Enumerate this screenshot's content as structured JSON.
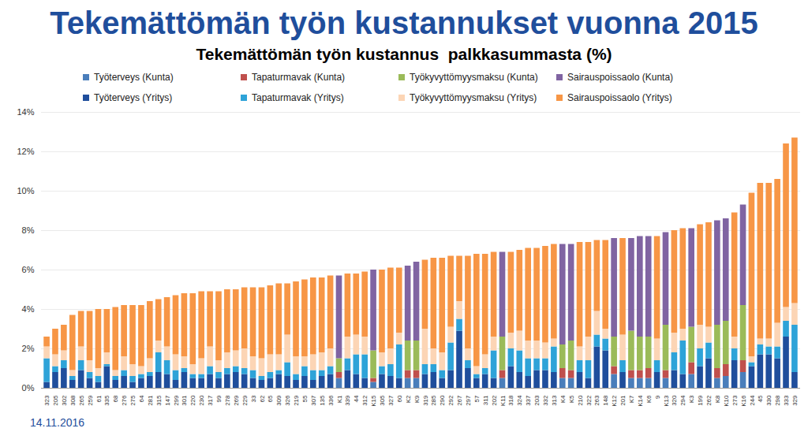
{
  "chart_data": {
    "type": "bar",
    "title": "Tekemättömän työn kustannukset vuonna 2015",
    "subtitle": "Tekemättömän työn kustannus  palkkasummasta (%)",
    "annotations": [
      "14.11.2016"
    ],
    "stacked": true,
    "grid": true,
    "legend": "top",
    "categories": [
      "323",
      "205",
      "302",
      "308",
      "265",
      "259",
      "61",
      "335",
      "68",
      "276",
      "275",
      "64",
      "281",
      "315",
      "147",
      "299",
      "301",
      "220",
      "230",
      "317",
      "99",
      "278",
      "269",
      "229",
      "33",
      "62",
      "65",
      "309",
      "326",
      "219",
      "55",
      "307",
      "135",
      "336",
      "K1",
      "339",
      "44",
      "312",
      "K15",
      "305",
      "327",
      "60",
      "K2",
      "K9",
      "319",
      "285",
      "290",
      "292",
      "267",
      "297",
      "57",
      "311",
      "202",
      "K11",
      "318",
      "324",
      "337",
      "203",
      "332",
      "313",
      "K4",
      "K5",
      "210",
      "322",
      "263",
      "148",
      "K12",
      "201",
      "K7",
      "K14",
      "K6",
      "9",
      "K13",
      "320",
      "294",
      "K3",
      "199",
      "262",
      "K8",
      "K10",
      "273",
      "K16",
      "244",
      "45",
      "330",
      "298",
      "333",
      "329"
    ],
    "ylim": [
      0,
      14
    ],
    "yticks": [
      {
        "value": 0,
        "label": "0%"
      },
      {
        "value": 2,
        "label": "2%"
      },
      {
        "value": 4,
        "label": "4%"
      },
      {
        "value": 6,
        "label": "6%"
      },
      {
        "value": 8,
        "label": "8%"
      },
      {
        "value": 10,
        "label": "10%"
      },
      {
        "value": 12,
        "label": "12%"
      },
      {
        "value": 14,
        "label": "14%"
      }
    ],
    "series": [
      {
        "name": "Työterveys (Kunta)",
        "color": "#4a7ebb",
        "values": [
          0,
          0,
          0,
          0,
          0,
          0,
          0,
          0,
          0,
          0,
          0,
          0,
          0,
          0,
          0,
          0,
          0,
          0,
          0,
          0,
          0,
          0,
          0,
          0,
          0,
          0,
          0,
          0,
          0,
          0,
          0,
          0,
          0,
          0,
          0.5,
          0,
          0,
          0,
          0.3,
          0,
          0,
          0,
          0.5,
          0.5,
          0,
          0,
          0,
          0,
          0,
          0,
          0,
          0,
          0,
          0.5,
          0,
          0,
          0,
          0,
          0,
          0,
          0.5,
          0.5,
          0,
          0,
          0,
          0,
          0.7,
          0,
          0.5,
          0.5,
          0.5,
          0,
          0.5,
          0,
          0,
          0.7,
          0,
          0,
          0.5,
          0.6,
          0,
          0.8,
          0,
          0,
          0,
          0,
          0,
          0
        ]
      },
      {
        "name": "Tapaturmavak (Kunta)",
        "color": "#c0504d",
        "values": [
          0,
          0,
          0,
          0,
          0,
          0,
          0,
          0,
          0,
          0,
          0,
          0,
          0,
          0,
          0,
          0,
          0,
          0,
          0,
          0,
          0,
          0,
          0,
          0,
          0,
          0,
          0,
          0,
          0,
          0,
          0,
          0,
          0,
          0,
          0.3,
          0,
          0,
          0,
          0.2,
          0,
          0,
          0,
          0.4,
          0.4,
          0,
          0,
          0,
          0,
          0,
          0,
          0,
          0,
          0,
          0.4,
          0,
          0,
          0,
          0,
          0,
          0,
          0.5,
          0.4,
          0,
          0,
          0,
          0,
          0.4,
          0,
          0.4,
          0.4,
          0.5,
          0,
          0.4,
          0,
          0,
          0.6,
          0,
          0,
          0.5,
          0.6,
          0,
          0.6,
          0,
          0,
          0,
          0,
          0,
          0
        ]
      },
      {
        "name": "Työkyvyttömyysmaksu (Kunta)",
        "color": "#9bbb59",
        "values": [
          0,
          0,
          0,
          0,
          0,
          0,
          0,
          0,
          0,
          0,
          0,
          0,
          0,
          0,
          0,
          0,
          0,
          0,
          0,
          0,
          0,
          0,
          0,
          0,
          0,
          0,
          0,
          0,
          0,
          0,
          0,
          0,
          0,
          0,
          0.7,
          0,
          0,
          0,
          1.4,
          0,
          0,
          0,
          1.5,
          1.5,
          0,
          0,
          0,
          0,
          0,
          0,
          0,
          0,
          0,
          1.7,
          0,
          0,
          0,
          0,
          0,
          0,
          1.2,
          1.5,
          0,
          0,
          0,
          0,
          1.5,
          0,
          2.0,
          1.7,
          1.6,
          0,
          2.3,
          0,
          0,
          1.8,
          0,
          0,
          2.2,
          2.2,
          0,
          2.8,
          0,
          0,
          0,
          0,
          0,
          0
        ]
      },
      {
        "name": "Sairauspoissaolo (Kunta)",
        "color": "#8064a2",
        "values": [
          0,
          0,
          0,
          0,
          0,
          0,
          0,
          0,
          0,
          0,
          0,
          0,
          0,
          0,
          0,
          0,
          0,
          0,
          0,
          0,
          0,
          0,
          0,
          0,
          0,
          0,
          0,
          0,
          0,
          0,
          0,
          0,
          0,
          0,
          4.2,
          0,
          0,
          0,
          4.1,
          0,
          0,
          0,
          3.8,
          4.0,
          0,
          0,
          0,
          0,
          0,
          0,
          0,
          0,
          0,
          4.3,
          0,
          0,
          0,
          0,
          0,
          0,
          5.1,
          4.9,
          0,
          0,
          0,
          0,
          5.0,
          0,
          4.7,
          5.1,
          5.1,
          0,
          4.7,
          0,
          0,
          5.0,
          0,
          0,
          5.3,
          5.2,
          0,
          5.1,
          0,
          0,
          0,
          0,
          0,
          0
        ]
      },
      {
        "name": "Työterveys (Yritys)",
        "color": "#1f4e9c",
        "values": [
          0.3,
          0.8,
          1.0,
          0.4,
          0.9,
          0.5,
          0.3,
          1.1,
          0.4,
          0.6,
          0.3,
          0.5,
          0.6,
          0.8,
          0.7,
          0.4,
          0.8,
          0.5,
          0.5,
          0.7,
          0.5,
          0.7,
          0.8,
          0.7,
          0.5,
          0.4,
          0.5,
          0.7,
          0.6,
          0.4,
          0.6,
          0.4,
          0.6,
          0.7,
          0,
          0.9,
          0.7,
          0.5,
          0,
          0.7,
          0.6,
          0.5,
          0,
          0,
          0.7,
          0.8,
          0.5,
          0.9,
          2.9,
          1.0,
          0.5,
          0.7,
          0.5,
          0,
          1.1,
          0.8,
          0.6,
          0.9,
          0.9,
          0.8,
          0,
          0,
          0.8,
          0.5,
          2.1,
          1.9,
          0,
          0.8,
          0,
          0,
          0,
          0.8,
          0,
          0.9,
          0.7,
          0,
          1.1,
          1.5,
          0,
          0,
          1.4,
          0,
          1.1,
          1.7,
          1.7,
          1.5,
          2.6,
          0.8
        ]
      },
      {
        "name": "Tapaturmavak (Yritys)",
        "color": "#2ea3d8",
        "values": [
          1.2,
          0.3,
          0.4,
          0.2,
          0.5,
          0.3,
          0.3,
          0.1,
          0.2,
          0.3,
          0.3,
          0.2,
          0.2,
          1.0,
          0.7,
          0.5,
          0.2,
          0.2,
          0.2,
          0.4,
          0.3,
          0.3,
          0.3,
          0.3,
          0.4,
          0.2,
          0.3,
          0.2,
          0.7,
          0.3,
          0.5,
          0.5,
          0.3,
          0.4,
          0,
          0.6,
          1.0,
          1.2,
          0,
          0.4,
          0.6,
          1.7,
          0,
          0,
          0.5,
          0.4,
          0.4,
          1.4,
          0.6,
          0.4,
          0.2,
          0.3,
          1.4,
          0,
          0.9,
          1.1,
          0.9,
          0.6,
          0.6,
          1.3,
          0,
          0,
          0.6,
          0.9,
          0.6,
          0.6,
          0,
          0.6,
          0,
          0,
          0,
          0.6,
          0,
          0.9,
          1.7,
          0,
          0.9,
          0.8,
          0,
          0,
          0.6,
          0,
          0.2,
          0.5,
          0.4,
          0.6,
          0.8,
          2.4
        ]
      },
      {
        "name": "Työkyvyttömyysmaksu (Yritys)",
        "color": "#fcd5b5",
        "values": [
          0.6,
          0.6,
          0.5,
          0.3,
          0.7,
          0.6,
          0.4,
          0.6,
          0.3,
          0.7,
          0.6,
          0.4,
          0.7,
          0.6,
          0.7,
          0.8,
          0.6,
          0.5,
          0.8,
          1.0,
          0.6,
          0.8,
          0.8,
          1.0,
          0.7,
          0.9,
          0.9,
          0.8,
          1.4,
          0.9,
          0.5,
          0.8,
          0.9,
          0.9,
          0,
          1.1,
          1.0,
          0.9,
          0,
          0.7,
          0.8,
          0.6,
          0,
          0,
          1.8,
          0.8,
          0.9,
          0.8,
          0.9,
          0.6,
          0.4,
          0.7,
          0.7,
          0,
          0.8,
          1.0,
          0.9,
          0.9,
          0.8,
          0.4,
          0,
          0,
          0.7,
          1.2,
          1.2,
          0.5,
          0,
          1.3,
          0,
          0,
          0,
          1.1,
          0,
          1.0,
          0.6,
          0,
          1.2,
          0.8,
          0,
          0,
          0.6,
          0,
          0.3,
          0.3,
          0.4,
          1.2,
          0.7,
          1.1
        ]
      },
      {
        "name": "Sairauspoissaolo (Yritys)",
        "color": "#f79646",
        "values": [
          0.5,
          1.3,
          1.3,
          2.8,
          1.8,
          2.5,
          3.0,
          2.2,
          3.2,
          2.6,
          3.0,
          3.1,
          2.9,
          2.1,
          2.5,
          3.0,
          3.2,
          3.6,
          3.4,
          2.8,
          3.5,
          3.2,
          3.1,
          3.1,
          3.5,
          3.6,
          3.5,
          3.6,
          2.6,
          3.8,
          3.9,
          3.9,
          3.8,
          3.7,
          0,
          3.2,
          3.1,
          3.3,
          0,
          4.2,
          4.1,
          3.3,
          0,
          0,
          3.5,
          4.6,
          4.8,
          3.6,
          2.3,
          4.7,
          5.7,
          5.1,
          4.3,
          0,
          4.1,
          4.1,
          4.7,
          4.7,
          4.9,
          4.8,
          0,
          0,
          5.3,
          4.8,
          3.6,
          4.5,
          0,
          4.9,
          0,
          0,
          0,
          5.2,
          0,
          5.2,
          5.1,
          0,
          5.1,
          5.3,
          0,
          0,
          6.3,
          0,
          8.3,
          7.9,
          7.9,
          7.3,
          8.3,
          8.4
        ]
      }
    ]
  }
}
